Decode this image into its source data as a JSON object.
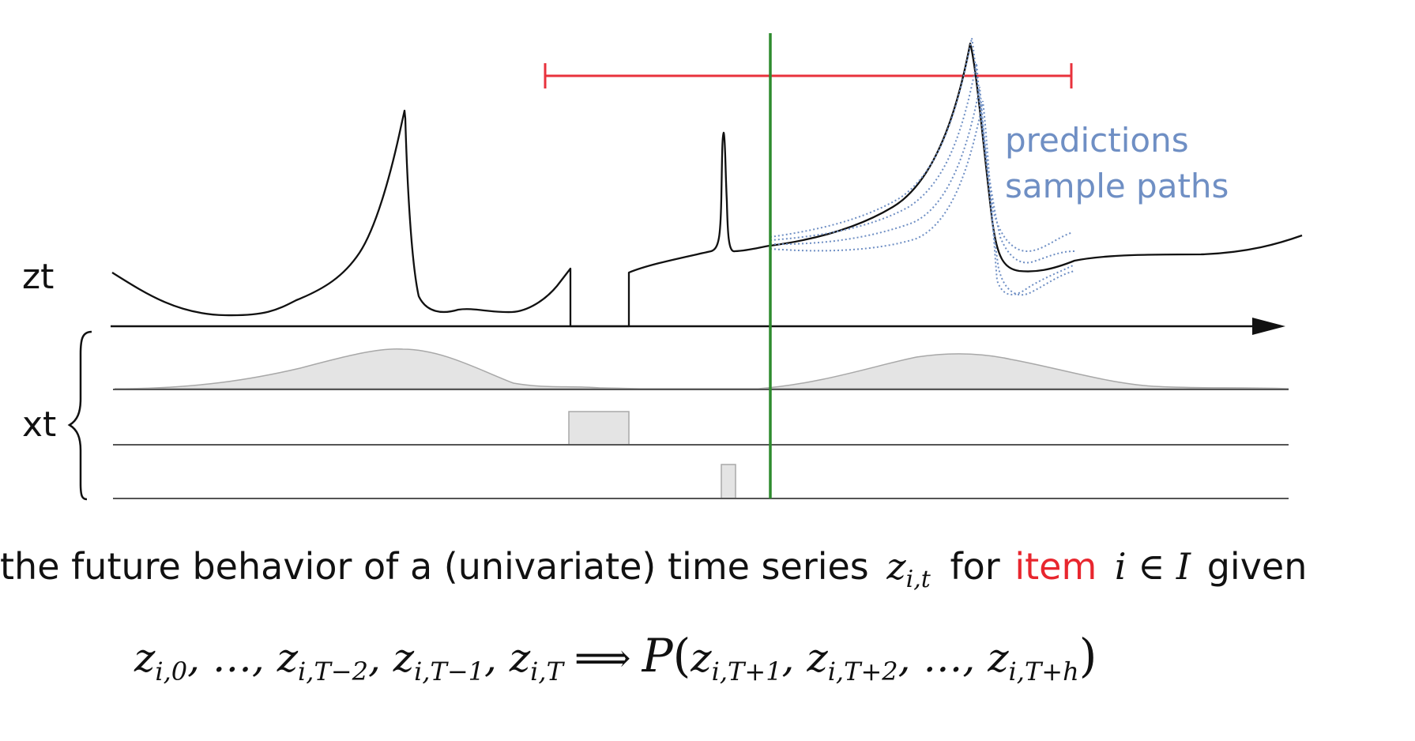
{
  "labels": {
    "zt": "zt",
    "xt": "xt",
    "predictions_line1": "predictions",
    "predictions_line2": "sample paths"
  },
  "caption": {
    "text_before": "the future behavior of a (univariate) time series",
    "math_z": "z",
    "math_z_sub": "i,t",
    "word_for": "for",
    "word_item": "item",
    "math_i": "i ∈ I",
    "word_given": "given"
  },
  "formula": {
    "lhs": [
      {
        "base": "z",
        "sub": "i,0"
      },
      {
        "base": "…",
        "sub": ""
      },
      {
        "base": "z",
        "sub": "i,T−2"
      },
      {
        "base": "z",
        "sub": "i,T−1"
      },
      {
        "base": "z",
        "sub": "i,T"
      }
    ],
    "arrow": "⟹",
    "P": "P",
    "rhs": [
      {
        "base": "z",
        "sub": "i,T+1"
      },
      {
        "base": "z",
        "sub": "i,T+2"
      },
      {
        "base": "…",
        "sub": ""
      },
      {
        "base": "z",
        "sub": "i,T+h"
      }
    ]
  },
  "colors": {
    "series": "#111111",
    "axis": "#111111",
    "forecast_split": "#2e8b2e",
    "horizon": "#e8323c",
    "predictions": "#6f8fc4",
    "covariate_fill": "#e4e4e4",
    "covariate_stroke": "#a8a8a8",
    "baseline": "#555555",
    "item_highlight": "#e8262e"
  }
}
